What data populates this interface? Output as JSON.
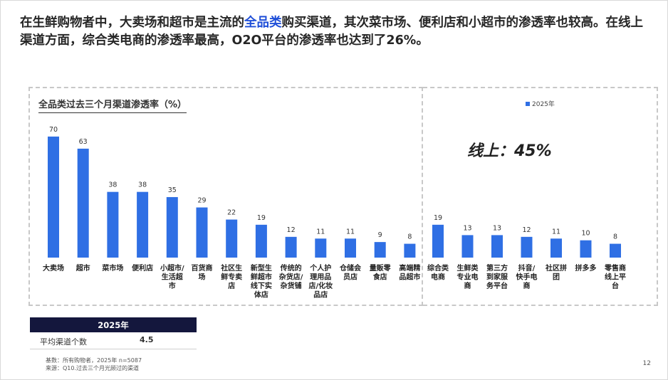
{
  "headline": {
    "part1": "在生鲜购物者中，大卖场和超市是主流的",
    "highlight": "全品类",
    "part2": "购买渠道，其次菜市场、便利店和小超市的渗透率也较高。在线上渠道方面，综合类电商的渗透率最高，O2O平台的渗透率也达到了26%。"
  },
  "online_label": "线上：45%",
  "chart_data": {
    "type": "bar",
    "title": "全品类过去三个月渠道渗透率（%）",
    "legend": "2025年",
    "legend_position": "top-right",
    "bar_color": "#2f6fe4",
    "categories": [
      "大卖场",
      "超市",
      "菜市场",
      "便利店",
      "小超市/生活超市",
      "百货商场",
      "社区生鲜专卖店",
      "新型生鲜超市线下实体店",
      "传统的杂货店/杂货铺",
      "个人护理用品店/化妆品店",
      "仓储会员店",
      "量贩零食店",
      "高端精品超市",
      "综合类电商",
      "生鲜类专业电商",
      "第三方到家服务平台",
      "抖音/快手电商",
      "社区拼团",
      "拼多多",
      "零售商线上平台"
    ],
    "category_lines": [
      [
        "大卖场"
      ],
      [
        "超市"
      ],
      [
        "菜市场"
      ],
      [
        "便利店"
      ],
      [
        "小超市/",
        "生活超",
        "市"
      ],
      [
        "百货商",
        "场"
      ],
      [
        "社区生",
        "鲜专卖",
        "店"
      ],
      [
        "新型生",
        "鲜超市",
        "线下实",
        "体店"
      ],
      [
        "传统的",
        "杂货店/",
        "杂货铺"
      ],
      [
        "个人护",
        "理用品",
        "店/化妆",
        "品店"
      ],
      [
        "仓储会",
        "员店"
      ],
      [
        "量贩零",
        "食店"
      ],
      [
        "高端精",
        "品超市"
      ],
      [
        "综合类",
        "电商"
      ],
      [
        "生鲜类",
        "专业电",
        "商"
      ],
      [
        "第三方",
        "到家服",
        "务平台"
      ],
      [
        "抖音/",
        "快手电",
        "商"
      ],
      [
        "社区拼",
        "团"
      ],
      [
        "拼多多"
      ],
      [
        "零售商",
        "线上平",
        "台"
      ]
    ],
    "values": [
      70,
      63,
      38,
      38,
      35,
      29,
      22,
      19,
      12,
      11,
      11,
      9,
      8,
      19,
      13,
      13,
      12,
      11,
      10,
      8
    ],
    "groups": [
      {
        "name": "offline",
        "count": 13
      },
      {
        "name": "online",
        "count": 7
      }
    ],
    "ylim": [
      0,
      75
    ],
    "grid": false
  },
  "table": {
    "header": "2025年",
    "row_label": "平均渠道个数",
    "row_value": "4.5"
  },
  "footnotes": {
    "base": "基数：所有购物者，2025年 n=5087",
    "source": "来源：Q10.过去三个月光顾过的渠道"
  },
  "page_number": "12"
}
